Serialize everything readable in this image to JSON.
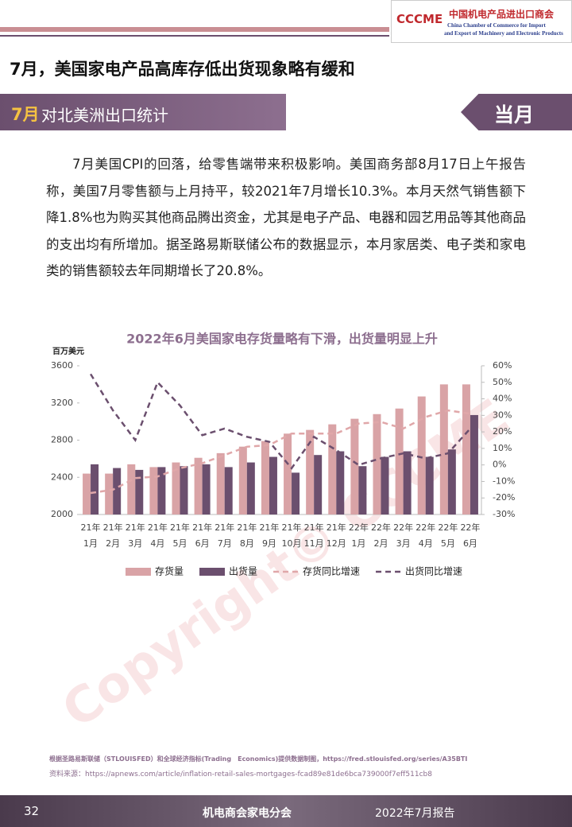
{
  "header": {
    "org_cn": "中国机电产品进出口商会",
    "org_en_1": "China Chamber of Commerce for Import",
    "org_en_2": "and Export of Machinery and Electronic Products",
    "logo": "CCCME"
  },
  "title": "7月，美国家电产品高库存低出货现象略有缓和",
  "section": {
    "month": "7月",
    "label": "对北美洲出口统计",
    "tag": "当月"
  },
  "paragraph": "7月美国CPI的回落，给零售端带来积极影响。美国商务部8月17日上午报告称，美国7月零售额与上月持平，较2021年7月增长10.3%。本月天然气销售额下降1.8%也为购买其他商品腾出资金，尤其是电子产品、电器和园艺用品等其他商品的支出均有所增加。据圣路易斯联储公布的数据显示，本月家居类、电子类和家电类的销售额较去年同期增长了20.8%。",
  "chart_data": {
    "type": "bar",
    "title": "2022年6月美国家电存货量略有下滑，出货量明显上升",
    "y_label": "百万美元",
    "categories": [
      [
        "21年",
        "1月"
      ],
      [
        "21年",
        "2月"
      ],
      [
        "21年",
        "3月"
      ],
      [
        "21年",
        "4月"
      ],
      [
        "21年",
        "5月"
      ],
      [
        "21年",
        "6月"
      ],
      [
        "21年",
        "7月"
      ],
      [
        "21年",
        "8月"
      ],
      [
        "21年",
        "9月"
      ],
      [
        "21年",
        "10月"
      ],
      [
        "21年",
        "11月"
      ],
      [
        "21年",
        "12月"
      ],
      [
        "22年",
        "1月"
      ],
      [
        "22年",
        "2月"
      ],
      [
        "22年",
        "3月"
      ],
      [
        "22年",
        "4月"
      ],
      [
        "22年",
        "5月"
      ],
      [
        "22年",
        "6月"
      ]
    ],
    "series": [
      {
        "name": "存货量",
        "type": "bar",
        "color": "#d9a3a6",
        "values": [
          2440,
          2440,
          2540,
          2510,
          2560,
          2610,
          2660,
          2730,
          2790,
          2870,
          2910,
          2970,
          3030,
          3080,
          3140,
          3270,
          3400,
          3400
        ]
      },
      {
        "name": "出货量",
        "type": "bar",
        "color": "#6b4f6e",
        "values": [
          2540,
          2500,
          2480,
          2510,
          2520,
          2540,
          2510,
          2560,
          2620,
          2450,
          2640,
          2680,
          2520,
          2620,
          2680,
          2620,
          2700,
          3070
        ]
      },
      {
        "name": "存货同比增速",
        "type": "line",
        "axis": "y2",
        "color": "#e0a7a9",
        "values": [
          -17,
          -15,
          -8,
          -7,
          -2,
          1,
          6,
          11,
          12,
          19,
          19,
          19,
          25,
          26,
          22,
          29,
          33,
          31
        ]
      },
      {
        "name": "出货同比增速",
        "type": "line",
        "axis": "y2",
        "color": "#6b4f6e",
        "values": [
          55,
          33,
          15,
          50,
          36,
          18,
          22,
          17,
          14,
          -2,
          17,
          9,
          0,
          4,
          7,
          4,
          7,
          22
        ]
      }
    ],
    "ylim": [
      2000,
      3600
    ],
    "yticks": [
      2000,
      2400,
      2800,
      3200,
      3600
    ],
    "y2lim": [
      -30,
      60
    ],
    "y2ticks": [
      {
        "value": -30,
        "label": "-30%"
      },
      {
        "value": -20,
        "label": "-20%"
      },
      {
        "value": -10,
        "label": "-10%"
      },
      {
        "value": 0,
        "label": "0%"
      },
      {
        "value": 10,
        "label": "10%"
      },
      {
        "value": 20,
        "label": "20%"
      },
      {
        "value": 30,
        "label": "30%"
      },
      {
        "value": 40,
        "label": "40%"
      },
      {
        "value": 50,
        "label": "50%"
      },
      {
        "value": 60,
        "label": "60%"
      }
    ],
    "grid": false,
    "legend": "bottom"
  },
  "source": {
    "line1": "根据圣路易斯联储（STLOUISFED）和全球经济指标(Trading　Economics)提供数据制图，https://fred.stlouisfed.org/series/A35BTI",
    "line2": "资料来源：https://apnews.com/article/inflation-retail-sales-mortgages-fcad89e81de6bca739000f7eff511cb8"
  },
  "watermark": "Copyright© CCCME",
  "footer": {
    "page": "32",
    "org": "机电商会家电分会",
    "report": "2022年7月报告"
  }
}
